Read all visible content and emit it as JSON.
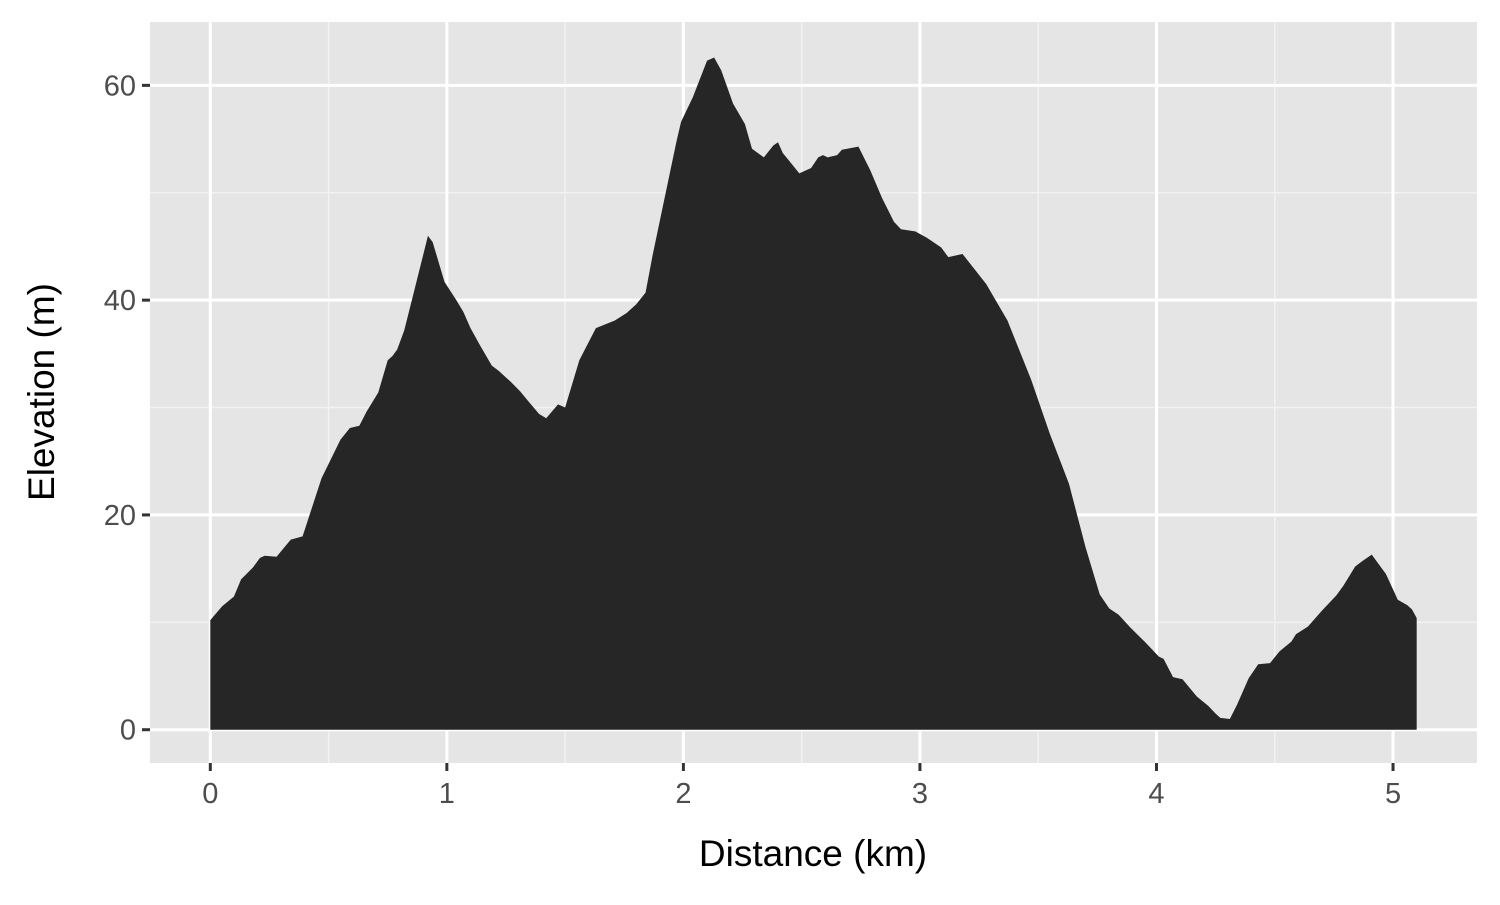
{
  "chart_data": {
    "type": "area",
    "x_label": "Distance (km)",
    "y_label": "Elevation (m)",
    "color": "#262626",
    "grid": true,
    "xlim": [
      -0.255,
      5.355
    ],
    "ylim": [
      -3.1,
      65.9
    ],
    "xticks": [
      0,
      1,
      2,
      3,
      4,
      5
    ],
    "yticks": [
      0,
      20,
      40,
      60
    ],
    "x": [
      0,
      0.05,
      0.1,
      0.13,
      0.18,
      0.21,
      0.23,
      0.28,
      0.34,
      0.39,
      0.47,
      0.55,
      0.59,
      0.63,
      0.66,
      0.71,
      0.75,
      0.77,
      0.79,
      0.82,
      0.86,
      0.91,
      0.92,
      0.94,
      0.99,
      1.04,
      1.07,
      1.1,
      1.14,
      1.19,
      1.22,
      1.27,
      1.31,
      1.34,
      1.39,
      1.42,
      1.47,
      1.5,
      1.56,
      1.63,
      1.71,
      1.76,
      1.8,
      1.84,
      1.87,
      1.91,
      1.97,
      1.99,
      2.04,
      2.1,
      2.13,
      2.16,
      2.21,
      2.26,
      2.29,
      2.34,
      2.38,
      2.4,
      2.42,
      2.45,
      2.49,
      2.54,
      2.57,
      2.59,
      2.61,
      2.65,
      2.67,
      2.74,
      2.79,
      2.84,
      2.89,
      2.92,
      2.98,
      3.03,
      3.09,
      3.12,
      3.18,
      3.28,
      3.37,
      3.47,
      3.55,
      3.63,
      3.7,
      3.76,
      3.8,
      3.84,
      3.89,
      3.95,
      4.01,
      4.03,
      4.07,
      4.11,
      4.17,
      4.22,
      4.25,
      4.27,
      4.31,
      4.34,
      4.39,
      4.43,
      4.48,
      4.52,
      4.57,
      4.59,
      4.64,
      4.7,
      4.76,
      4.79,
      4.84,
      4.87,
      4.91,
      4.97,
      5.02,
      5.06,
      5.08,
      5.1
    ],
    "values": [
      10.2,
      11.5,
      12.4,
      14.0,
      15.1,
      16.0,
      16.2,
      16.1,
      17.7,
      18.0,
      23.4,
      27.0,
      28.1,
      28.3,
      29.6,
      31.4,
      34.4,
      34.8,
      35.4,
      37.2,
      40.7,
      45.1,
      46.0,
      45.4,
      41.7,
      40.0,
      38.9,
      37.4,
      35.8,
      33.9,
      33.4,
      32.4,
      31.5,
      30.7,
      29.4,
      29.0,
      30.3,
      30.0,
      34.4,
      37.4,
      38.1,
      38.8,
      39.6,
      40.7,
      44.2,
      48.4,
      54.7,
      56.6,
      58.9,
      62.3,
      62.6,
      61.4,
      58.3,
      56.4,
      54.1,
      53.3,
      54.4,
      54.7,
      53.7,
      52.9,
      51.8,
      52.3,
      53.3,
      53.5,
      53.3,
      53.5,
      54.0,
      54.3,
      52.1,
      49.5,
      47.3,
      46.6,
      46.4,
      45.8,
      44.9,
      44.0,
      44.3,
      41.5,
      38.1,
      32.6,
      27.5,
      22.9,
      17.0,
      12.6,
      11.3,
      10.7,
      9.5,
      8.2,
      6.8,
      6.6,
      4.9,
      4.7,
      3.1,
      2.2,
      1.5,
      1.1,
      1.0,
      2.3,
      4.8,
      6.1,
      6.2,
      7.3,
      8.2,
      8.9,
      9.6,
      11.1,
      12.5,
      13.4,
      15.2,
      15.7,
      16.3,
      14.5,
      12.1,
      11.6,
      11.2,
      10.4
    ]
  }
}
